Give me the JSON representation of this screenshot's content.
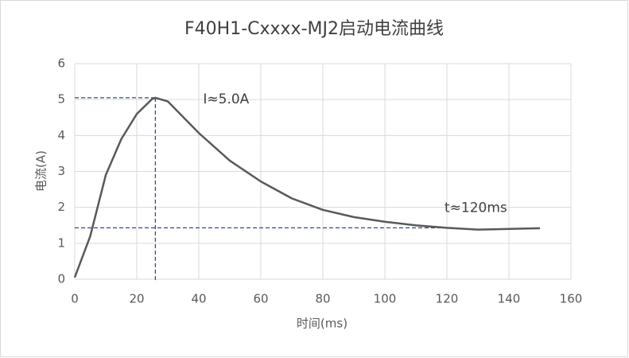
{
  "chart_data": {
    "type": "line",
    "title": "F40H1-Cxxxx-MJ2启动电流曲线",
    "x_label": "时间(ms)",
    "y_label": "电流(A)",
    "x": [
      0,
      5,
      10,
      15,
      20,
      25,
      26,
      30,
      40,
      50,
      60,
      70,
      80,
      90,
      100,
      110,
      120,
      130,
      140,
      150
    ],
    "values": [
      0.05,
      1.2,
      2.9,
      3.9,
      4.6,
      5.02,
      5.05,
      4.95,
      4.07,
      3.3,
      2.72,
      2.25,
      1.93,
      1.73,
      1.6,
      1.5,
      1.43,
      1.38,
      1.4,
      1.42
    ],
    "color": "#595959",
    "xlim": [
      0,
      160
    ],
    "xticks": [
      0,
      20,
      40,
      60,
      80,
      100,
      120,
      140,
      160
    ],
    "ylim": [
      0,
      6
    ],
    "yticks": [
      0,
      1,
      2,
      3,
      4,
      5,
      6
    ],
    "grid": true,
    "markers": [
      {
        "x": 26,
        "y": 5.05,
        "label": "I≈5.0A"
      },
      {
        "x": 120,
        "y": 1.43,
        "label": "t≈120ms"
      }
    ],
    "marker_color": "#2f4a8a"
  }
}
